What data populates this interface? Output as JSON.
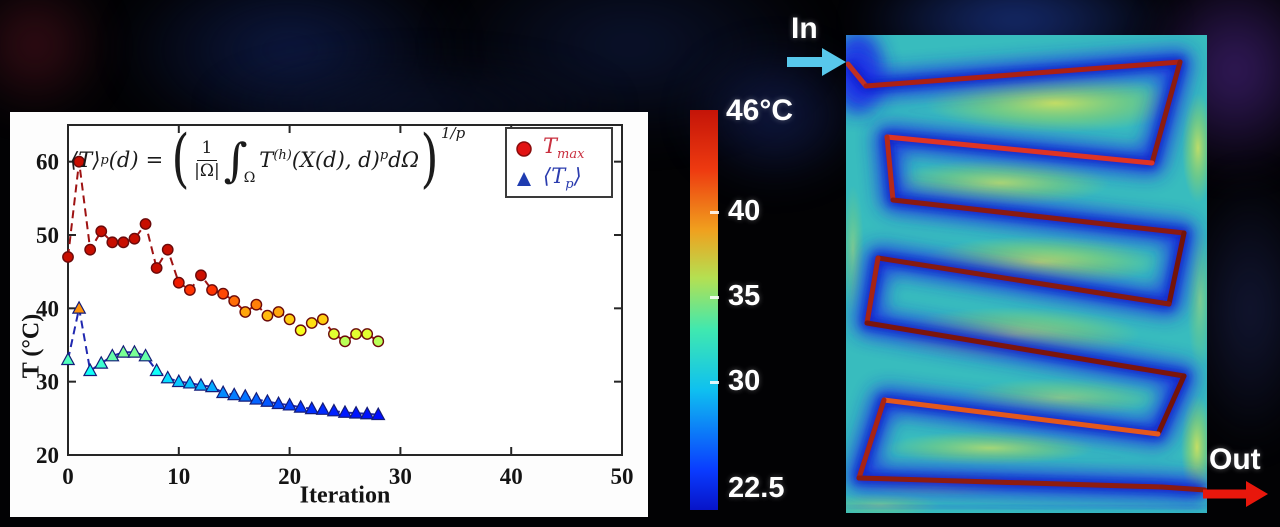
{
  "chart_data": {
    "type": "line",
    "xlabel": "Iteration",
    "ylabel": "T (°C)",
    "xlim": [
      0,
      50
    ],
    "ylim": [
      20,
      65
    ],
    "xticks": [
      0,
      10,
      20,
      30,
      40,
      50
    ],
    "yticks": [
      20,
      30,
      40,
      50,
      60
    ],
    "grid": false,
    "legend_location": "northeast",
    "marker_colormap": {
      "min": 22.5,
      "max": 46
    },
    "series": [
      {
        "name": "T_max",
        "marker": "circle",
        "line_color": "#9e1212",
        "edge_color": "#6b0a0a",
        "x": [
          0,
          1,
          2,
          3,
          4,
          5,
          6,
          7,
          8,
          9,
          10,
          11,
          12,
          13,
          14,
          15,
          16,
          17,
          18,
          19,
          20,
          21,
          22,
          23,
          24,
          25,
          26,
          27,
          28
        ],
        "values": [
          47,
          60,
          48,
          50.5,
          49,
          49,
          49.5,
          51.5,
          45.5,
          48,
          43.5,
          42.5,
          44.5,
          42.5,
          42,
          41,
          39.5,
          40.5,
          39,
          39.5,
          38.5,
          37,
          38,
          38.5,
          36.5,
          35.5,
          36.5,
          36.5,
          35.5
        ]
      },
      {
        "name": "⟨T_p⟩",
        "marker": "triangle",
        "line_color": "#2028b0",
        "edge_color": "#141c78",
        "x": [
          0,
          1,
          2,
          3,
          4,
          5,
          6,
          7,
          8,
          9,
          10,
          11,
          12,
          13,
          14,
          15,
          16,
          17,
          18,
          19,
          20,
          21,
          22,
          23,
          24,
          25,
          26,
          27,
          28
        ],
        "values": [
          33,
          40,
          31.5,
          32.5,
          33.5,
          34,
          34,
          33.5,
          31.5,
          30.5,
          30,
          29.8,
          29.5,
          29.3,
          28.5,
          28.2,
          28,
          27.6,
          27.3,
          27,
          26.8,
          26.5,
          26.3,
          26.2,
          26,
          25.8,
          25.7,
          25.6,
          25.5
        ]
      }
    ],
    "legend": {
      "items": [
        {
          "marker": "circle",
          "marker_color": "#e21212",
          "label": "T",
          "label_sub": "max",
          "text_color": "#c9303f"
        },
        {
          "marker": "triangle",
          "marker_color": "#1f3cb0",
          "label_open": "⟨",
          "label": "T",
          "label_sub": "p",
          "label_close": "⟩",
          "text_color": "#2b3cae"
        }
      ]
    }
  },
  "formula": {
    "lhs": "⟨T⟩",
    "lhs_sub": "p",
    "lhs_arg": "(d)",
    "equals": "=",
    "open_paren": "(",
    "frac_num": "1",
    "frac_den": "|Ω|",
    "integral": "∫",
    "integral_sub": "Ω",
    "body": "T",
    "body_sup": "(h)",
    "body_args": "(X(d), d)",
    "body_exp": "p",
    "body_tail": "dΩ",
    "close_paren": ")",
    "outer_exp": "1/p"
  },
  "colorbar": {
    "max_label": "46°C",
    "min": 22.5,
    "max": 46,
    "ticks": [
      {
        "label": "40",
        "value": 40,
        "mark": true
      },
      {
        "label": "35",
        "value": 35,
        "mark": true
      },
      {
        "label": "30",
        "value": 30,
        "mark": true
      },
      {
        "label": "22.5",
        "value": 22.5,
        "mark": false
      }
    ],
    "gradient": [
      [
        0,
        "#0714c8"
      ],
      [
        0.1,
        "#0a3cff"
      ],
      [
        0.3,
        "#0fc0f0"
      ],
      [
        0.45,
        "#3fe8b0"
      ],
      [
        0.58,
        "#b4e052"
      ],
      [
        0.7,
        "#f0a01e"
      ],
      [
        0.85,
        "#ee3a10"
      ],
      [
        1,
        "#c41408"
      ]
    ]
  },
  "heatmap": {
    "field_base_color": "#38bcbe",
    "cold_color": "#1a2ce8",
    "cold_core_color": "#0a16c0",
    "warm_color": "#dce455",
    "bounds": [
      846,
      35,
      361,
      478
    ],
    "channel_path": [
      [
        848,
        64
      ],
      [
        866,
        86
      ],
      [
        1180,
        62
      ],
      [
        1152,
        163
      ],
      [
        887,
        137
      ],
      [
        893,
        200
      ],
      [
        1184,
        233
      ],
      [
        1169,
        304
      ],
      [
        878,
        258
      ],
      [
        867,
        323
      ],
      [
        1184,
        376
      ],
      [
        1158,
        434
      ],
      [
        884,
        400
      ],
      [
        859,
        478
      ],
      [
        1162,
        487
      ],
      [
        1205,
        490
      ]
    ],
    "segment_colors": [
      "#c03022",
      "#ab2014",
      "#8c1c10",
      "#df3424",
      "#b62a18",
      "#8a1a12",
      "#741409",
      "#861a10",
      "#a62414",
      "#7c150c",
      "#741409",
      "#e4581c",
      "#a82414",
      "#8e1c10",
      "#8a1a10"
    ],
    "warm_blobs": [
      [
        1055,
        103,
        130,
        30,
        0.9
      ],
      [
        1000,
        183,
        110,
        24,
        0.75
      ],
      [
        1040,
        262,
        120,
        26,
        0.85
      ],
      [
        1015,
        334,
        125,
        27,
        0.75
      ],
      [
        1060,
        398,
        100,
        20,
        0.55
      ],
      [
        990,
        448,
        105,
        17,
        0.7
      ],
      [
        940,
        484,
        85,
        13,
        0.45
      ],
      [
        1198,
        148,
        16,
        55,
        0.85
      ],
      [
        1200,
        300,
        13,
        70,
        0.45
      ],
      [
        1197,
        447,
        16,
        52,
        0.9
      ],
      [
        880,
        505,
        60,
        12,
        0.4
      ],
      [
        853,
        250,
        11,
        65,
        0.45
      ]
    ]
  },
  "annotations": {
    "inlet": {
      "label": "In",
      "color": "#58c8ec"
    },
    "outlet": {
      "label": "Out",
      "color": "#e8170c"
    }
  }
}
